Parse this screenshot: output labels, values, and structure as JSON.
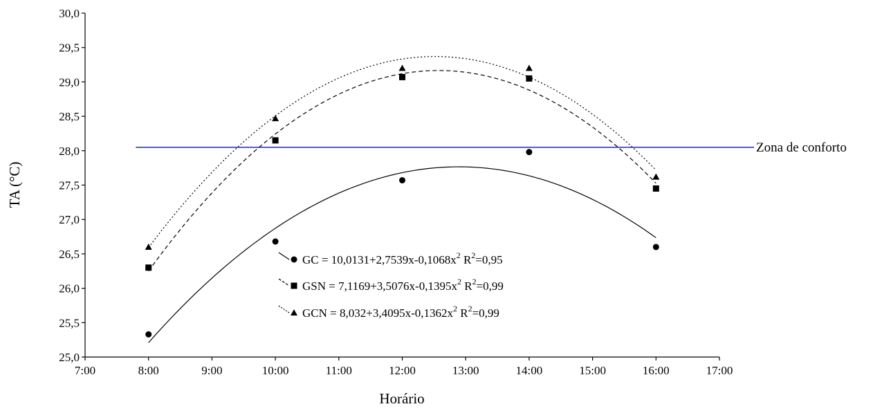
{
  "chart_data": {
    "type": "scatter",
    "title": "",
    "xlabel": "Horário",
    "ylabel": "TA (°C)",
    "xlim": [
      7,
      17
    ],
    "ylim": [
      25.0,
      30.0
    ],
    "x_ticks": [
      7,
      8,
      9,
      10,
      11,
      12,
      13,
      14,
      15,
      16,
      17
    ],
    "x_tick_labels": [
      "7:00",
      "8:00",
      "9:00",
      "10:00",
      "11:00",
      "12:00",
      "13:00",
      "14:00",
      "15:00",
      "16:00",
      "17:00"
    ],
    "y_ticks": [
      25.0,
      25.5,
      26.0,
      26.5,
      27.0,
      27.5,
      28.0,
      28.5,
      29.0,
      29.5,
      30.0
    ],
    "y_tick_labels": [
      "25,0",
      "25,5",
      "26,0",
      "26,5",
      "27,0",
      "27,5",
      "28,0",
      "28,5",
      "29,0",
      "29,5",
      "30,0"
    ],
    "grid": false,
    "legend_position": "center-bottom",
    "series": [
      {
        "name": "GC",
        "marker": "circle",
        "line_style": "solid",
        "x": [
          8,
          10,
          12,
          14,
          16
        ],
        "y": [
          25.33,
          26.68,
          27.57,
          27.98,
          26.6
        ],
        "fit": {
          "a": 10.0131,
          "b": 2.7539,
          "c": -0.1068
        },
        "legend_label": "GC = 10,0131+2,7539x-0,1068x",
        "legend_r2": "=0,95"
      },
      {
        "name": "GSN",
        "marker": "square",
        "line_style": "dashed",
        "x": [
          8,
          10,
          12,
          14,
          16
        ],
        "y": [
          26.3,
          28.15,
          29.07,
          29.05,
          27.45
        ],
        "fit": {
          "a": 7.1169,
          "b": 3.5076,
          "c": -0.1395
        },
        "legend_label": "GSN = 7,1169+3,5076x-0,1395x",
        "legend_r2": "=0,99"
      },
      {
        "name": "GCN",
        "marker": "triangle",
        "line_style": "dotted",
        "x": [
          8,
          10,
          12,
          14,
          16
        ],
        "y": [
          26.6,
          28.47,
          29.2,
          29.2,
          27.62
        ],
        "fit": {
          "a": 8.032,
          "b": 3.4095,
          "c": -0.1362
        },
        "legend_label": "GCN = 8,032+3,4095x-0,1362x",
        "legend_r2": "=0,99"
      }
    ],
    "reference_line": {
      "label": "Zona de conforto",
      "y": 28.05,
      "color": "#1f1fd6"
    },
    "legend_exponent": "2",
    "legend_r_symbol": "R"
  }
}
